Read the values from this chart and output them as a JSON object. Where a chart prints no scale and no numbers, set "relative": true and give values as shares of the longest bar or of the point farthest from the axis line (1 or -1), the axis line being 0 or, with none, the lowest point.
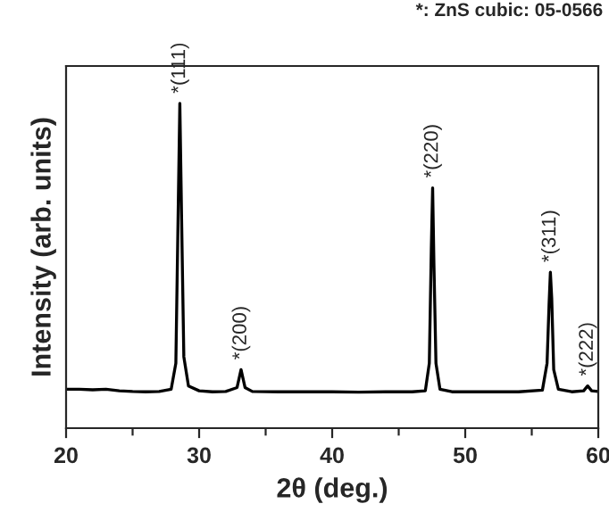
{
  "chart_data": {
    "type": "line",
    "relative": true,
    "xlabel": "2θ (deg.)",
    "ylabel": "Intensity (arb. units)",
    "xlim": [
      20,
      60
    ],
    "xticks": [
      20,
      {
        "value": 25,
        "label": null
      },
      30,
      {
        "value": 35,
        "label": null
      },
      40,
      {
        "value": 45,
        "label": null
      },
      50,
      {
        "value": 55,
        "label": null
      },
      60
    ],
    "grid": false,
    "legend": false,
    "marker": "none",
    "line_style": "solid",
    "series": [
      {
        "color": "#000000",
        "x": [
          20,
          21,
          22,
          23,
          24,
          25,
          26,
          27,
          27.9,
          28.25,
          28.4,
          28.55,
          28.7,
          28.85,
          29.2,
          30,
          31,
          32,
          32.85,
          33.15,
          33.45,
          34,
          36,
          38,
          40,
          42,
          44,
          46,
          47.0,
          47.3,
          47.45,
          47.55,
          47.65,
          47.8,
          48.1,
          49,
          50,
          52,
          54,
          55.8,
          56.15,
          56.3,
          56.4,
          56.5,
          56.65,
          57.0,
          58,
          58.9,
          59.2,
          59.5,
          60
        ],
        "values": [
          0.12,
          0.12,
          0.118,
          0.12,
          0.115,
          0.113,
          0.112,
          0.113,
          0.12,
          0.2,
          0.6,
          1.0,
          0.6,
          0.22,
          0.13,
          0.115,
          0.112,
          0.113,
          0.125,
          0.18,
          0.125,
          0.113,
          0.112,
          0.112,
          0.112,
          0.111,
          0.112,
          0.112,
          0.115,
          0.2,
          0.55,
          0.74,
          0.5,
          0.2,
          0.12,
          0.112,
          0.112,
          0.112,
          0.112,
          0.117,
          0.2,
          0.38,
          0.48,
          0.4,
          0.18,
          0.12,
          0.112,
          0.115,
          0.13,
          0.115,
          0.113
        ]
      }
    ],
    "annotations": [
      {
        "text": "*(111)",
        "x": 28.55,
        "y": 1.0
      },
      {
        "text": "*(200)",
        "x": 33.15,
        "y": 0.18
      },
      {
        "text": "*(220)",
        "x": 47.55,
        "y": 0.74
      },
      {
        "text": "*(311)",
        "x": 56.4,
        "y": 0.48
      },
      {
        "text": "*(222)",
        "x": 59.2,
        "y": 0.13
      },
      "*: ZnS cubic: 05-0566"
    ]
  }
}
